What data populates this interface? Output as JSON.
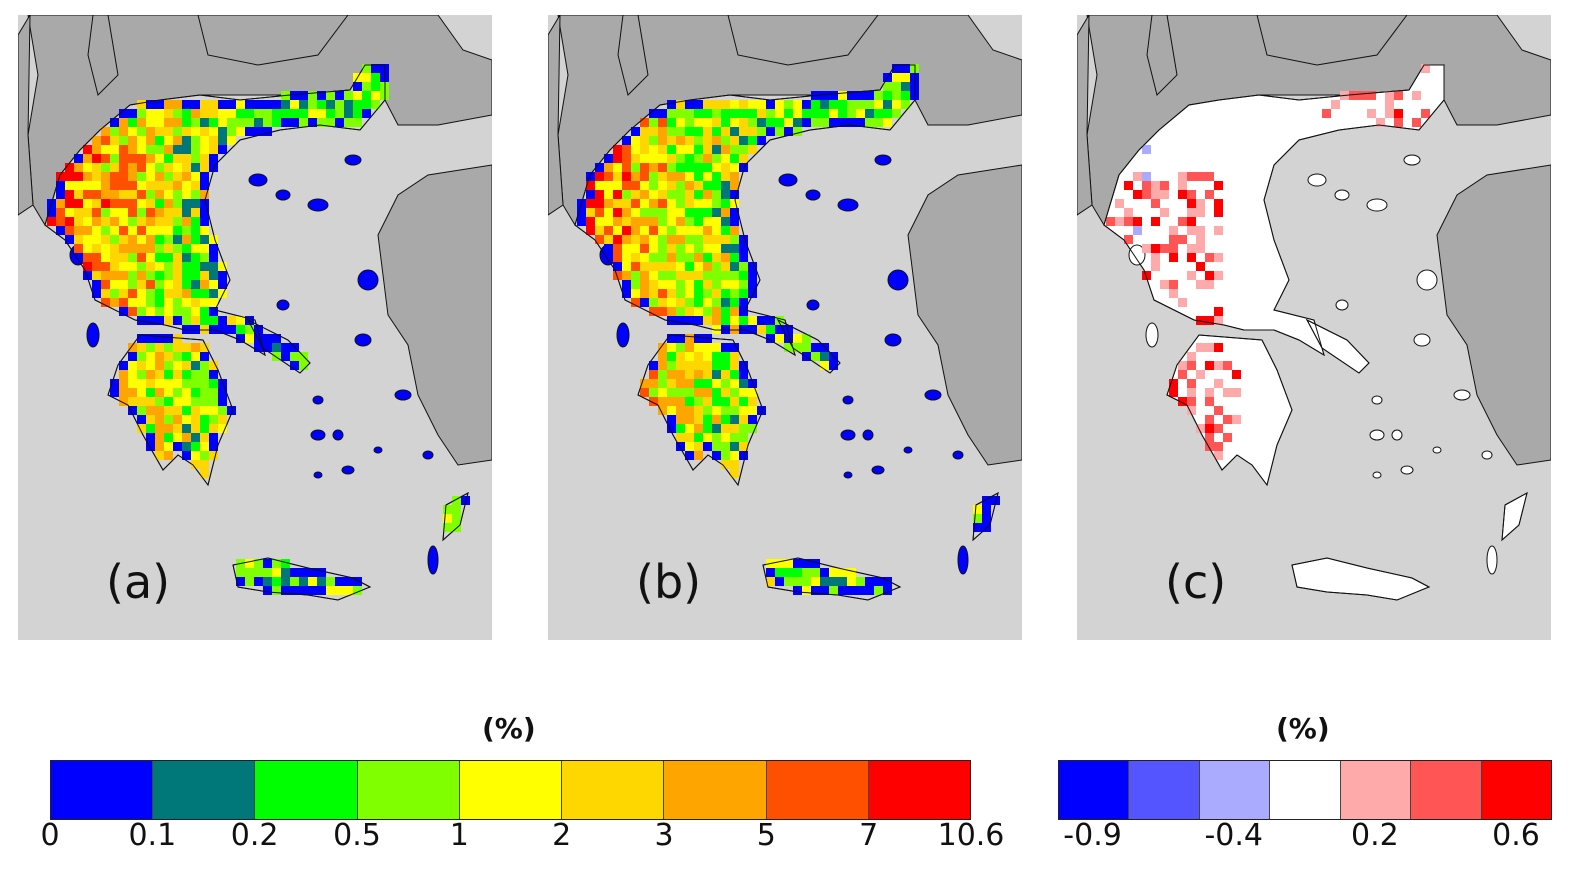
{
  "panels": [
    {
      "label": "(a)",
      "scheme": "absolute"
    },
    {
      "label": "(b)",
      "scheme": "absolute"
    },
    {
      "label": "(c)",
      "scheme": "difference"
    }
  ],
  "colorbars": {
    "absolute": {
      "title": "(%)",
      "ticks": [
        "0",
        "0.1",
        "0.2",
        "0.5",
        "1",
        "2",
        "3",
        "5",
        "7",
        "10.6"
      ],
      "colors": [
        "#0000ff",
        "#00787a",
        "#00ff00",
        "#80ff00",
        "#ffff00",
        "#ffd700",
        "#ffa500",
        "#ff5000",
        "#ff0000"
      ]
    },
    "difference": {
      "title": "(%)",
      "ticks": [
        "-0.9",
        "-0.4",
        "0.2",
        "0.6"
      ],
      "colors": [
        "#0000ff",
        "#5555ff",
        "#aaaaff",
        "#ffffff",
        "#ffaaaa",
        "#ff5555",
        "#ff0000"
      ]
    }
  },
  "map_colors": {
    "sea": "#d3d3d3",
    "neighbor_land": "#a9a9a9",
    "outline": "#111111"
  }
}
